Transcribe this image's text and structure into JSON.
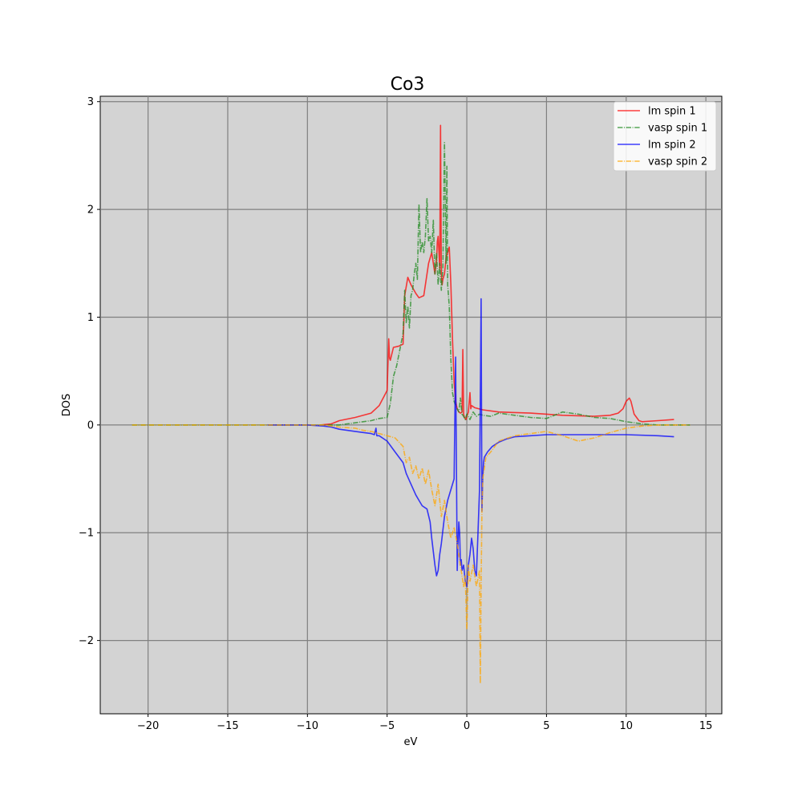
{
  "chart_data": {
    "type": "line",
    "title": "Co3",
    "xlabel": "eV",
    "ylabel": "DOS",
    "xlim": [
      -23,
      16
    ],
    "ylim": [
      -2.68,
      3.05
    ],
    "xticks": [
      -20,
      -15,
      -10,
      -5,
      0,
      5,
      10,
      15
    ],
    "yticks": [
      -2,
      -1,
      0,
      1,
      2,
      3
    ],
    "xtick_labels": [
      "−20",
      "−15",
      "−10",
      "−5",
      "0",
      "5",
      "10",
      "15"
    ],
    "ytick_labels": [
      "−2",
      "−1",
      "0",
      "1",
      "2",
      "3"
    ],
    "grid": true,
    "background": "#d3d3d3",
    "legend_position": "top-right",
    "series": [
      {
        "name": "lm spin 1",
        "color": "#ff0000",
        "style": "solid",
        "x": [
          -9.2,
          -8.5,
          -8.0,
          -7.0,
          -6.0,
          -5.5,
          -5.0,
          -4.9,
          -4.85,
          -4.8,
          -4.6,
          -4.3,
          -4.0,
          -3.9,
          -3.7,
          -3.5,
          -3.2,
          -3.0,
          -2.7,
          -2.4,
          -2.2,
          -2.0,
          -1.9,
          -1.85,
          -1.8,
          -1.7,
          -1.65,
          -1.6,
          -1.55,
          -1.5,
          -1.4,
          -1.3,
          -1.2,
          -1.1,
          -1.0,
          -0.9,
          -0.8,
          -0.7,
          -0.6,
          -0.5,
          -0.4,
          -0.3,
          -0.25,
          -0.2,
          -0.15,
          -0.1,
          -0.05,
          0.0,
          0.1,
          0.2,
          0.25,
          0.3,
          0.5,
          1.0,
          2.0,
          4.0,
          6.0,
          8.0,
          9.0,
          9.5,
          9.8,
          10.0,
          10.2,
          10.3,
          10.5,
          10.8,
          11.0,
          12.0,
          13.0
        ],
        "y": [
          0.0,
          0.01,
          0.04,
          0.07,
          0.11,
          0.18,
          0.32,
          0.8,
          0.62,
          0.6,
          0.72,
          0.73,
          0.75,
          1.2,
          1.37,
          1.3,
          1.22,
          1.18,
          1.2,
          1.5,
          1.6,
          1.4,
          1.52,
          1.7,
          1.75,
          1.45,
          2.78,
          1.4,
          1.3,
          1.35,
          1.4,
          1.55,
          1.6,
          1.65,
          1.3,
          0.8,
          0.4,
          0.22,
          0.15,
          0.12,
          0.11,
          0.12,
          0.7,
          0.1,
          0.07,
          0.06,
          0.05,
          0.08,
          0.12,
          0.3,
          0.15,
          0.18,
          0.16,
          0.14,
          0.12,
          0.11,
          0.09,
          0.08,
          0.09,
          0.11,
          0.15,
          0.22,
          0.25,
          0.22,
          0.1,
          0.04,
          0.03,
          0.04,
          0.05
        ]
      },
      {
        "name": "vasp spin 1",
        "color": "#228b22",
        "style": "dashdot",
        "x": [
          -21.0,
          -18.0,
          -15.0,
          -12.0,
          -9.0,
          -8.0,
          -7.5,
          -7.0,
          -6.5,
          -6.0,
          -5.5,
          -5.0,
          -4.8,
          -4.6,
          -4.4,
          -4.2,
          -4.0,
          -3.9,
          -3.8,
          -3.7,
          -3.6,
          -3.5,
          -3.4,
          -3.3,
          -3.2,
          -3.1,
          -3.0,
          -2.9,
          -2.8,
          -2.7,
          -2.6,
          -2.5,
          -2.4,
          -2.3,
          -2.2,
          -2.1,
          -2.0,
          -1.9,
          -1.8,
          -1.7,
          -1.6,
          -1.5,
          -1.4,
          -1.3,
          -1.25,
          -1.2,
          -1.1,
          -1.0,
          -0.9,
          -0.8,
          -0.7,
          -0.6,
          -0.5,
          -0.4,
          -0.3,
          -0.2,
          -0.1,
          0.0,
          0.2,
          0.4,
          0.6,
          0.8,
          1.0,
          1.5,
          2.0,
          3.0,
          4.0,
          5.0,
          6.0,
          7.0,
          8.0,
          9.0,
          10.0,
          11.0,
          12.0,
          13.0,
          14.0
        ],
        "y": [
          0.0,
          0.0,
          0.0,
          0.0,
          0.0,
          0.0,
          0.01,
          0.02,
          0.03,
          0.04,
          0.06,
          0.07,
          0.2,
          0.45,
          0.55,
          0.7,
          0.85,
          1.25,
          0.95,
          1.1,
          0.9,
          1.2,
          1.25,
          1.4,
          1.5,
          1.35,
          2.05,
          1.6,
          1.7,
          1.6,
          1.75,
          2.1,
          1.7,
          1.75,
          1.6,
          1.9,
          1.4,
          1.6,
          1.3,
          1.5,
          1.25,
          1.45,
          2.62,
          1.5,
          2.4,
          1.3,
          1.1,
          0.6,
          0.3,
          0.22,
          0.18,
          0.15,
          0.12,
          0.25,
          0.1,
          0.08,
          0.05,
          0.1,
          0.05,
          0.12,
          0.08,
          0.1,
          0.09,
          0.08,
          0.11,
          0.09,
          0.07,
          0.06,
          0.12,
          0.1,
          0.07,
          0.06,
          0.03,
          0.01,
          0.0,
          0.0,
          0.0
        ]
      },
      {
        "name": "lm spin 2",
        "color": "#0000ff",
        "style": "solid",
        "x": [
          -12.5,
          -10.0,
          -9.0,
          -8.5,
          -8.0,
          -7.5,
          -7.0,
          -6.5,
          -6.0,
          -5.8,
          -5.7,
          -5.65,
          -5.5,
          -5.0,
          -4.5,
          -4.0,
          -3.8,
          -3.5,
          -3.2,
          -3.0,
          -2.8,
          -2.5,
          -2.3,
          -2.2,
          -2.0,
          -1.9,
          -1.8,
          -1.7,
          -1.6,
          -1.4,
          -1.2,
          -1.0,
          -0.8,
          -0.7,
          -0.6,
          -0.55,
          -0.5,
          -0.45,
          -0.4,
          -0.35,
          -0.3,
          -0.2,
          -0.1,
          0.0,
          0.1,
          0.2,
          0.3,
          0.4,
          0.5,
          0.6,
          0.7,
          0.8,
          0.9,
          0.95,
          1.0,
          1.05,
          1.1,
          1.3,
          1.6,
          2.0,
          2.5,
          3.0,
          4.0,
          5.0,
          6.0,
          8.0,
          10.0,
          12.0,
          13.0
        ],
        "y": [
          0.0,
          0.0,
          -0.01,
          -0.02,
          -0.04,
          -0.05,
          -0.06,
          -0.07,
          -0.08,
          -0.09,
          -0.03,
          -0.1,
          -0.1,
          -0.15,
          -0.25,
          -0.35,
          -0.45,
          -0.55,
          -0.65,
          -0.7,
          -0.75,
          -0.78,
          -0.9,
          -1.05,
          -1.3,
          -1.4,
          -1.35,
          -1.2,
          -1.1,
          -0.85,
          -0.7,
          -0.6,
          -0.5,
          0.63,
          -1.35,
          -1.1,
          -0.9,
          -1.0,
          -1.3,
          -1.25,
          -1.35,
          -1.3,
          -1.45,
          -1.5,
          -1.3,
          -1.2,
          -1.05,
          -1.15,
          -1.35,
          -1.4,
          -1.0,
          -0.6,
          1.17,
          -0.8,
          -0.5,
          -0.35,
          -0.3,
          -0.25,
          -0.2,
          -0.16,
          -0.13,
          -0.11,
          -0.1,
          -0.09,
          -0.09,
          -0.09,
          -0.09,
          -0.1,
          -0.11
        ]
      },
      {
        "name": "vasp spin 2",
        "color": "#ffa500",
        "style": "dashdot",
        "x": [
          -21.0,
          -18.0,
          -15.0,
          -12.0,
          -9.0,
          -8.0,
          -7.0,
          -6.5,
          -6.0,
          -5.5,
          -5.0,
          -4.5,
          -4.0,
          -3.8,
          -3.6,
          -3.4,
          -3.2,
          -3.0,
          -2.8,
          -2.6,
          -2.4,
          -2.2,
          -2.0,
          -1.8,
          -1.6,
          -1.4,
          -1.2,
          -1.0,
          -0.8,
          -0.6,
          -0.4,
          -0.2,
          -0.1,
          0.0,
          0.1,
          0.2,
          0.4,
          0.6,
          0.8,
          0.85,
          0.9,
          0.95,
          1.0,
          1.2,
          1.5,
          2.0,
          3.0,
          4.0,
          5.0,
          6.0,
          7.0,
          8.0,
          9.0,
          10.0,
          11.0,
          12.0,
          13.0,
          14.0
        ],
        "y": [
          0.0,
          0.0,
          0.0,
          0.0,
          0.0,
          -0.02,
          -0.03,
          -0.05,
          -0.06,
          -0.08,
          -0.1,
          -0.12,
          -0.2,
          -0.35,
          -0.3,
          -0.45,
          -0.38,
          -0.5,
          -0.4,
          -0.55,
          -0.42,
          -0.6,
          -0.75,
          -0.55,
          -0.85,
          -0.7,
          -0.9,
          -1.05,
          -0.95,
          -1.1,
          -1.3,
          -1.5,
          -1.4,
          -1.9,
          -1.3,
          -1.45,
          -1.3,
          -1.5,
          -1.35,
          -2.4,
          -1.5,
          -0.8,
          -0.5,
          -0.3,
          -0.25,
          -0.15,
          -0.1,
          -0.08,
          -0.06,
          -0.1,
          -0.15,
          -0.12,
          -0.07,
          -0.03,
          -0.01,
          0.0,
          0.0,
          0.0
        ]
      }
    ]
  }
}
